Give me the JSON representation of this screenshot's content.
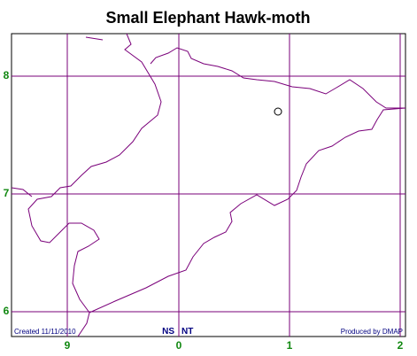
{
  "header": {
    "title": "Small Elephant Hawk-moth"
  },
  "map": {
    "y_labels": [
      "8",
      "7",
      "6"
    ],
    "x_labels": [
      "9",
      "0",
      "1",
      "2"
    ]
  },
  "footer": {
    "created": "Created 11/11/2010",
    "left_code": "NS",
    "right_code": "NT",
    "credit": "Produced by DMAP"
  }
}
